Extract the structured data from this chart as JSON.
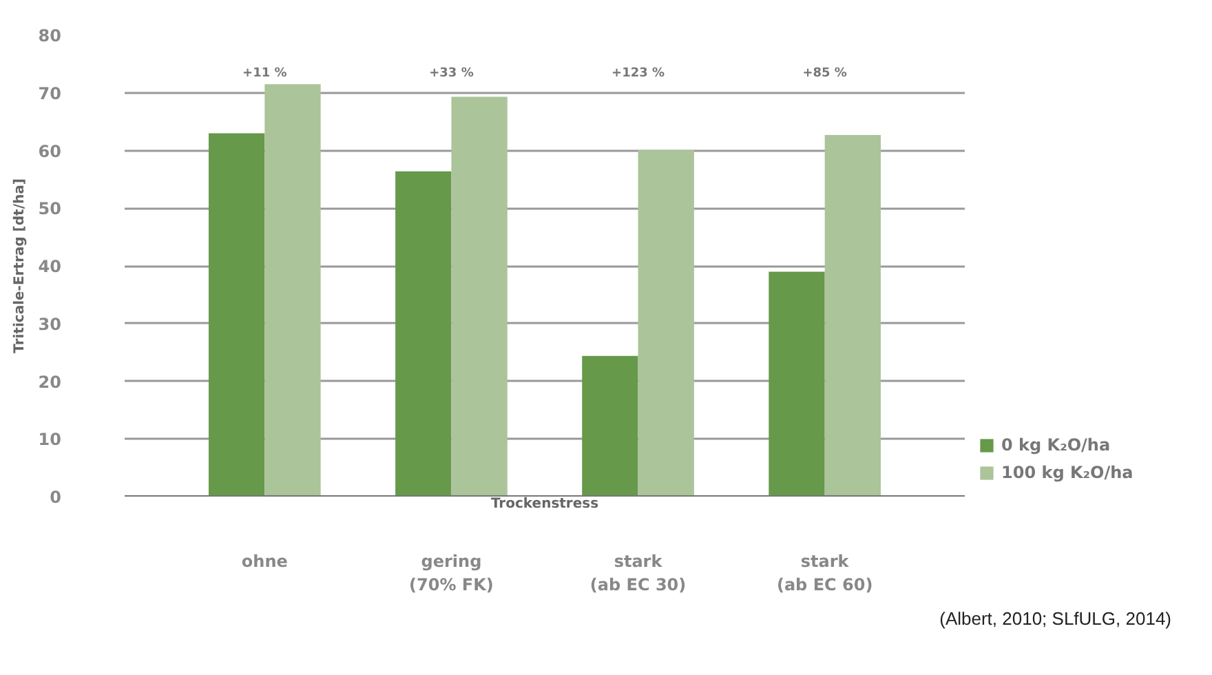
{
  "chart_data": {
    "type": "bar",
    "ylabel": "Triticale-Ertrag [dt/ha]",
    "xlabel": "Trockenstress",
    "categories": [
      "ohne",
      "gering\n(70% FK)",
      "stark\n(ab EC 30)",
      "stark\n(ab EC 60)"
    ],
    "series": [
      {
        "name": "0 kg K₂O/ha",
        "color": "#66994a",
        "values": [
          63.0,
          56.4,
          24.4,
          39.0
        ]
      },
      {
        "name": "100 kg K₂O/ha",
        "color": "#abc49a",
        "values": [
          71.5,
          69.3,
          60.1,
          62.7
        ]
      }
    ],
    "ylim": [
      0,
      80
    ],
    "yticks": [
      0,
      10,
      20,
      30,
      40,
      50,
      60,
      70,
      80
    ],
    "grid": "y",
    "legend": "bottom right",
    "annotations": [
      "+11 %",
      "+33 %",
      "+123 %",
      "+85 %",
      "(Albert, 2010; SLfULG, 2014)"
    ]
  }
}
